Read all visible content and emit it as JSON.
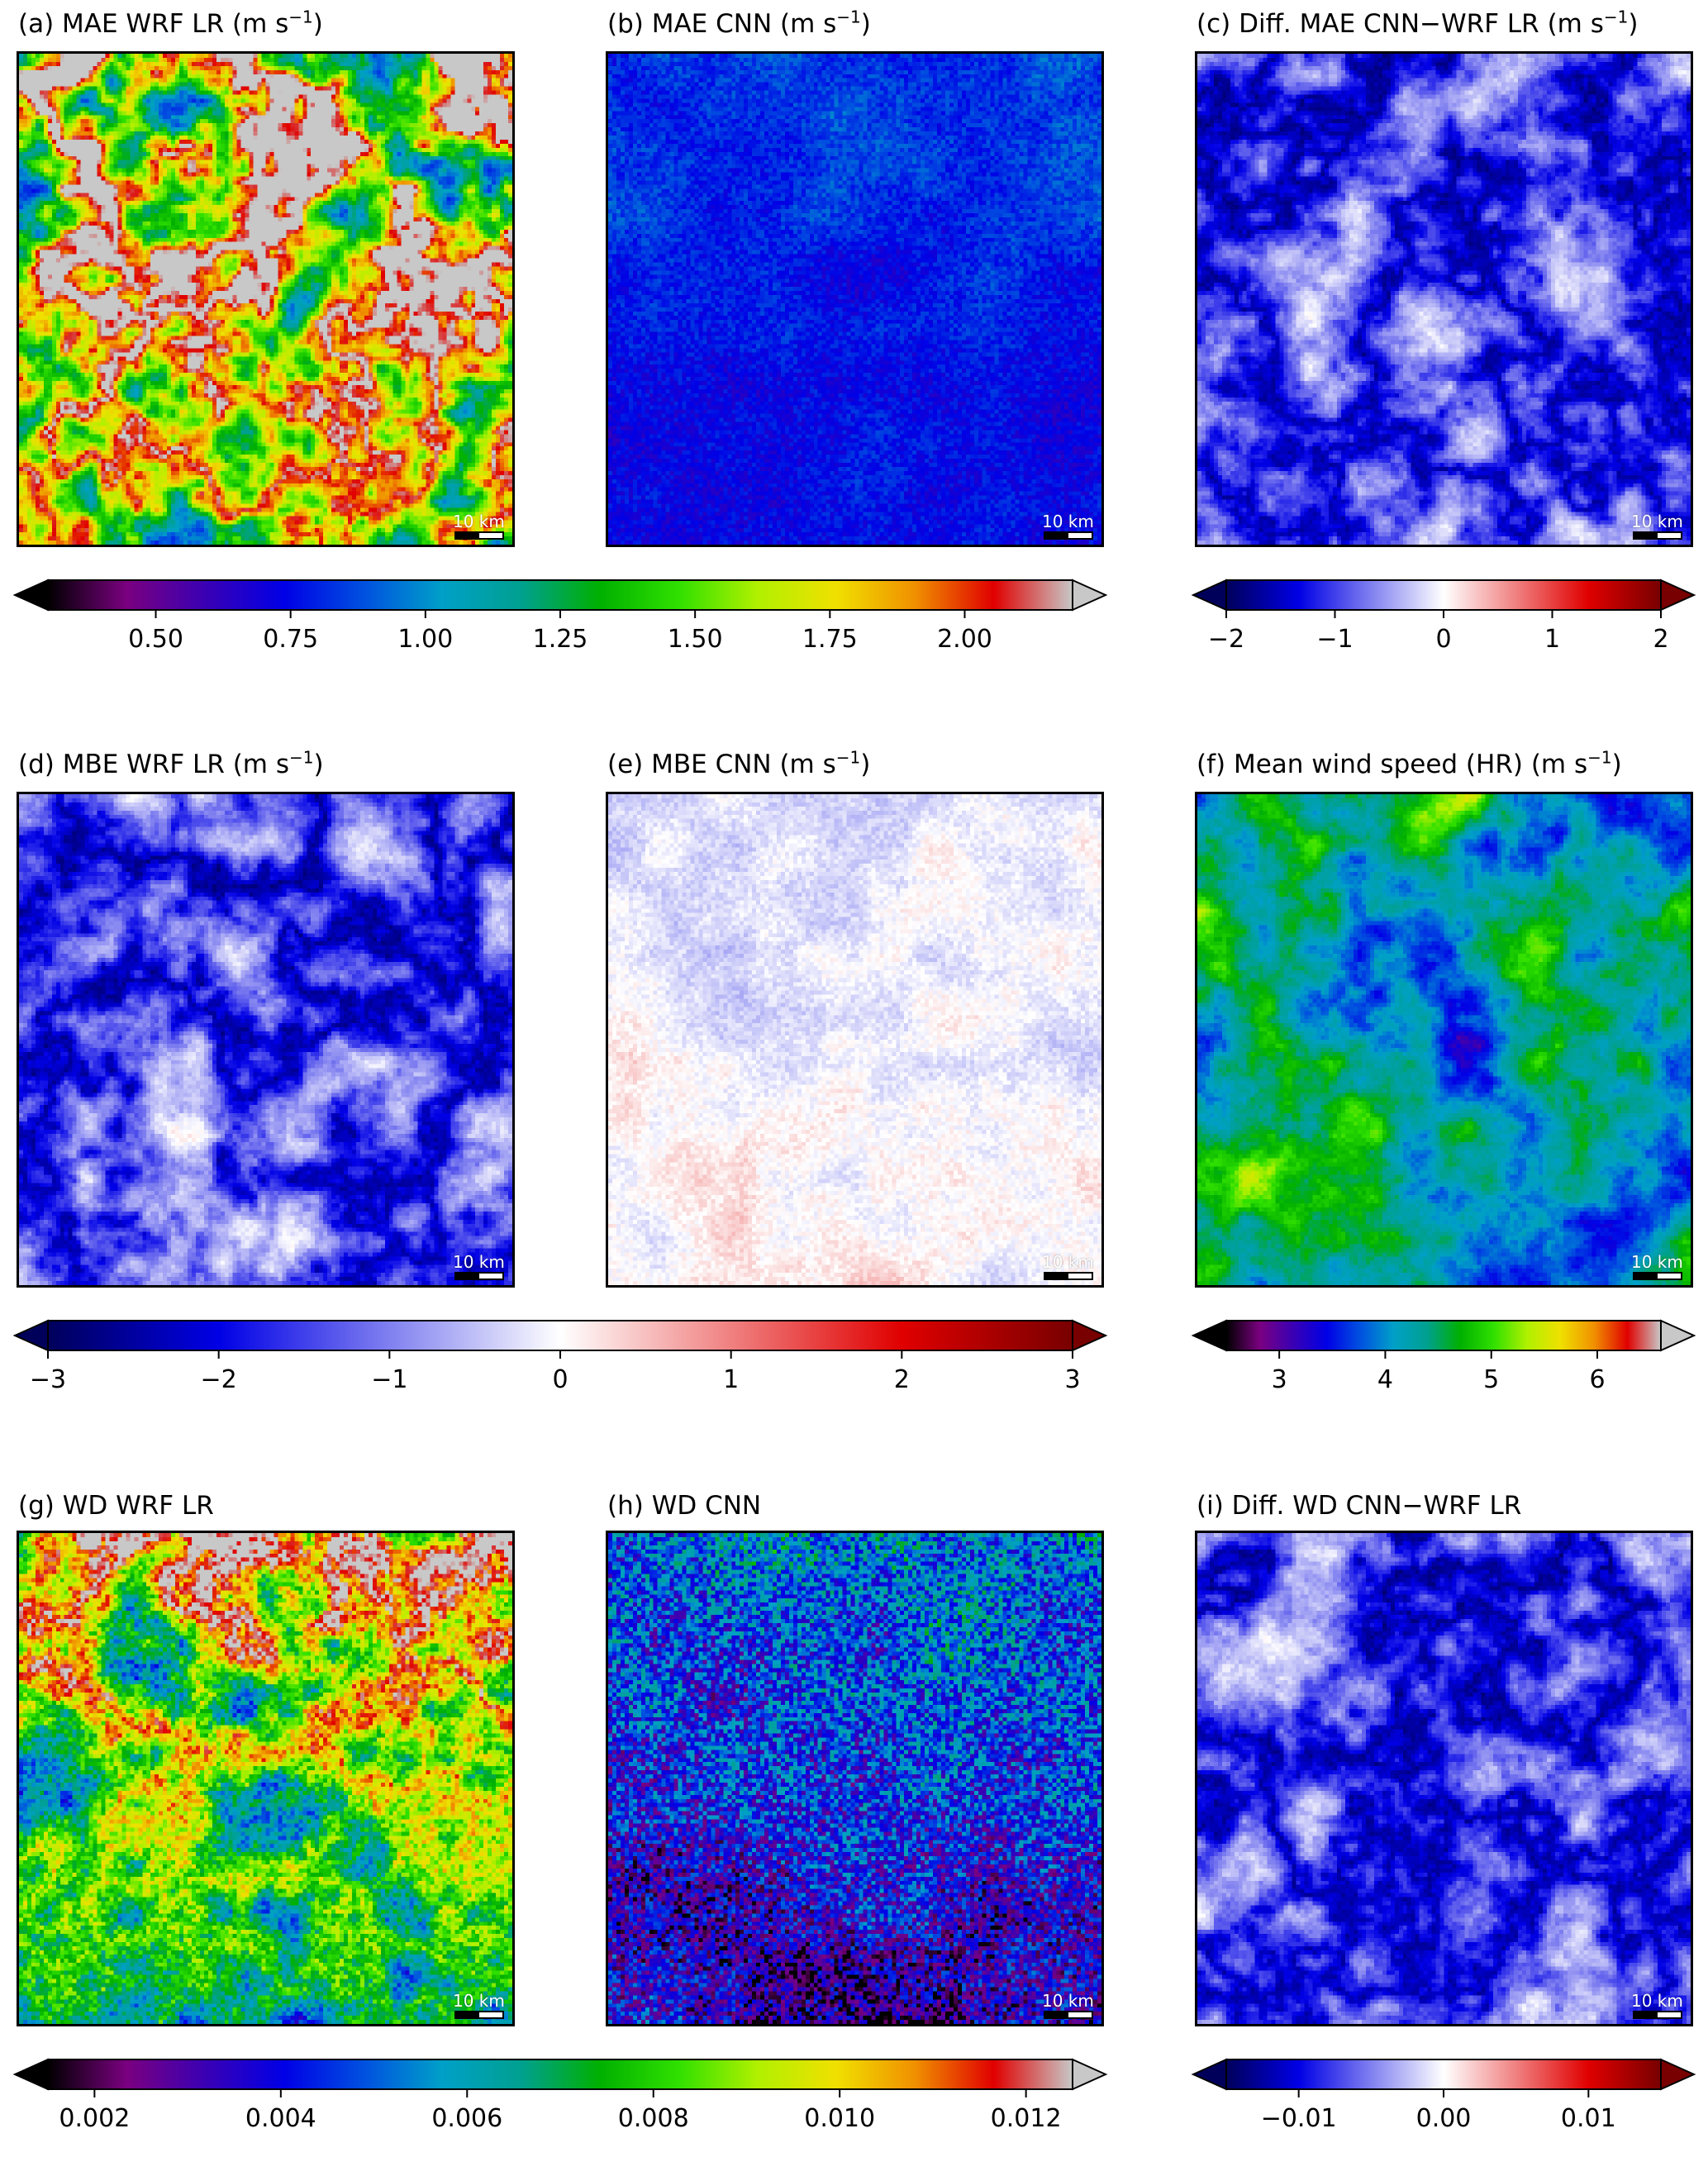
{
  "panels": [
    {
      "id": "a",
      "title_main": "(a) MAE WRF LR (m s",
      "title_sup": "−1",
      "title_end": ")",
      "scale_label": "10 km",
      "cmap": "rainbow",
      "seed": 11,
      "field": "mae_lr"
    },
    {
      "id": "b",
      "title_main": "(b) MAE CNN (m s",
      "title_sup": "−1",
      "title_end": ")",
      "scale_label": "10 km",
      "cmap": "rainbow",
      "seed": 23,
      "field": "mae_cnn"
    },
    {
      "id": "c",
      "title_main": "(c) Diff. MAE CNN−WRF LR (m s",
      "title_sup": "−1",
      "title_end": ")",
      "scale_label": "10 km",
      "cmap": "diverging",
      "seed": 37,
      "field": "diff_neg"
    },
    {
      "id": "d",
      "title_main": "(d) MBE WRF LR (m s",
      "title_sup": "−1",
      "title_end": ")",
      "scale_label": "10 km",
      "cmap": "diverging",
      "seed": 41,
      "field": "diff_neg"
    },
    {
      "id": "e",
      "title_main": "(e) MBE CNN (m s",
      "title_sup": "−1",
      "title_end": ")",
      "scale_label": "10 km",
      "cmap": "diverging",
      "seed": 53,
      "field": "mbe_cnn"
    },
    {
      "id": "f",
      "title_main": "(f) Mean wind speed (HR) (m s",
      "title_sup": "−1",
      "title_end": ")",
      "scale_label": "10 km",
      "cmap": "rainbow",
      "seed": 67,
      "field": "speed"
    },
    {
      "id": "g",
      "title_main": "(g) WD WRF LR",
      "title_sup": "",
      "title_end": "",
      "scale_label": "10 km",
      "cmap": "rainbow",
      "seed": 71,
      "field": "wd_lr"
    },
    {
      "id": "h",
      "title_main": "(h) WD CNN",
      "title_sup": "",
      "title_end": "",
      "scale_label": "10 km",
      "cmap": "rainbow",
      "seed": 83,
      "field": "wd_cnn"
    },
    {
      "id": "i",
      "title_main": "(i) Diff. WD CNN−WRF LR",
      "title_sup": "",
      "title_end": "",
      "scale_label": "10 km",
      "cmap": "diverging",
      "seed": 97,
      "field": "diff_neg"
    }
  ],
  "colorbars": [
    {
      "id": "cb1",
      "cmap": "rainbow",
      "range": [
        0.3,
        2.2
      ],
      "ticks": [
        "0.50",
        "0.75",
        "1.00",
        "1.25",
        "1.50",
        "1.75",
        "2.00"
      ],
      "tick_values": [
        0.5,
        0.75,
        1.0,
        1.25,
        1.5,
        1.75,
        2.0
      ]
    },
    {
      "id": "cb2",
      "cmap": "diverging",
      "range": [
        -2,
        2
      ],
      "ticks": [
        "−2",
        "−1",
        "0",
        "1",
        "2"
      ],
      "tick_values": [
        -2,
        -1,
        0,
        1,
        2
      ]
    },
    {
      "id": "cb3",
      "cmap": "diverging",
      "range": [
        -3,
        3
      ],
      "ticks": [
        "−3",
        "−2",
        "−1",
        "0",
        "1",
        "2",
        "3"
      ],
      "tick_values": [
        -3,
        -2,
        -1,
        0,
        1,
        2,
        3
      ]
    },
    {
      "id": "cb4",
      "cmap": "rainbow",
      "range": [
        2.5,
        6.6
      ],
      "ticks": [
        "3",
        "4",
        "5",
        "6"
      ],
      "tick_values": [
        3,
        4,
        5,
        6
      ]
    },
    {
      "id": "cb5",
      "cmap": "rainbow",
      "range": [
        0.0015,
        0.0125
      ],
      "ticks": [
        "0.002",
        "0.004",
        "0.006",
        "0.008",
        "0.010",
        "0.012"
      ],
      "tick_values": [
        0.002,
        0.004,
        0.006,
        0.008,
        0.01,
        0.012
      ]
    },
    {
      "id": "cb6",
      "cmap": "diverging",
      "range": [
        -0.015,
        0.015
      ],
      "ticks": [
        "−0.01",
        "0.00",
        "0.01"
      ],
      "tick_values": [
        -0.01,
        0.0,
        0.01
      ]
    }
  ],
  "colormaps": {
    "rainbow": [
      "#000000",
      "#7a0080",
      "#3a00b4",
      "#0000e6",
      "#0050e0",
      "#00a0c8",
      "#00a090",
      "#00b000",
      "#30e000",
      "#b0f000",
      "#f0e000",
      "#f09000",
      "#e00000",
      "#c8c8c8"
    ],
    "diverging": [
      "#00005a",
      "#0000e6",
      "#8080f0",
      "#ffffff",
      "#f08080",
      "#e00000",
      "#780000"
    ]
  },
  "chart_data": {
    "type": "heatmap",
    "panels": [
      "(a) MAE WRF LR",
      "(b) MAE CNN",
      "(c) Diff. MAE CNN−WRF LR",
      "(d) MBE WRF LR",
      "(e) MBE CNN",
      "(f) Mean wind speed (HR)",
      "(g) WD WRF LR",
      "(h) WD CNN",
      "(i) Diff. WD CNN−WRF LR"
    ],
    "units": "m s−1",
    "colorbar_ranges": {
      "MAE": [
        0.5,
        2.0
      ],
      "Diff. MAE": [
        -2,
        2
      ],
      "MBE": [
        -3,
        3
      ],
      "Mean wind speed": [
        3,
        6
      ],
      "WD": [
        0.002,
        0.012
      ],
      "Diff. WD": [
        -0.01,
        0.01
      ]
    }
  }
}
